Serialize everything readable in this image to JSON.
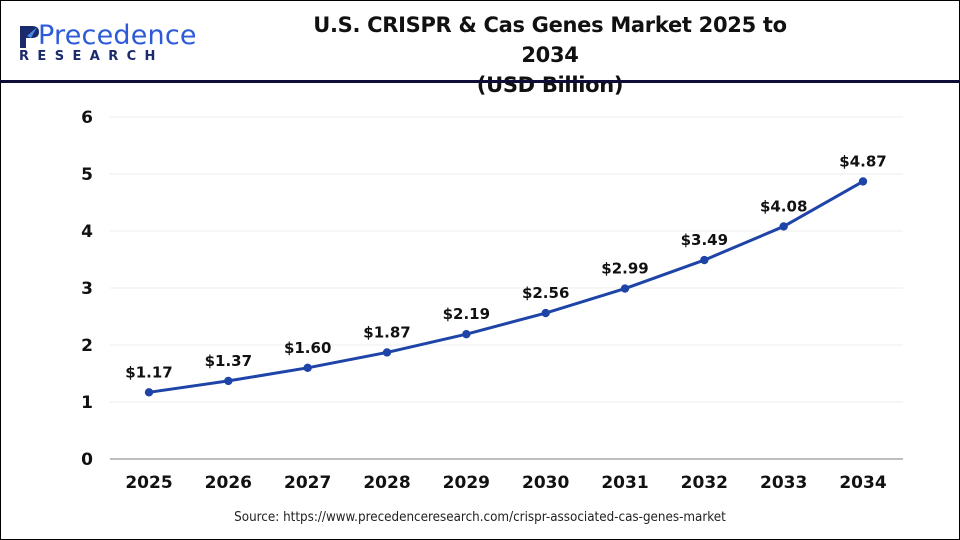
{
  "brand": {
    "name_top": "Precedence",
    "name_bottom": "RESEARCH",
    "colors": {
      "primary": "#2d5bd8",
      "dark": "#1a2a6c"
    }
  },
  "header": {
    "title_line1": "U.S. CRISPR & Cas Genes Market 2025 to 2034",
    "title_line2": "(USD Billion)"
  },
  "footer": {
    "source": "Source: https://www.precedenceresearch.com/crispr-associated-cas-genes-market"
  },
  "chart_data": {
    "type": "line",
    "title": "U.S. CRISPR & Cas Genes Market 2025 to 2034 (USD Billion)",
    "xlabel": "",
    "ylabel": "",
    "categories": [
      "2025",
      "2026",
      "2027",
      "2028",
      "2029",
      "2030",
      "2031",
      "2032",
      "2033",
      "2034"
    ],
    "series": [
      {
        "name": "U.S. CRISPR & Cas Genes Market",
        "values": [
          1.17,
          1.37,
          1.6,
          1.87,
          2.19,
          2.56,
          2.99,
          3.49,
          4.08,
          4.87
        ],
        "labels": [
          "$1.17",
          "$1.37",
          "$1.60",
          "$1.87",
          "$2.19",
          "$2.56",
          "$2.99",
          "$3.49",
          "$4.08",
          "$4.87"
        ],
        "color": "#1f44a8"
      }
    ],
    "ylim": [
      0,
      6
    ],
    "yticks": [
      0,
      1,
      2,
      3,
      4,
      5,
      6
    ],
    "grid": true,
    "legend": "none"
  }
}
